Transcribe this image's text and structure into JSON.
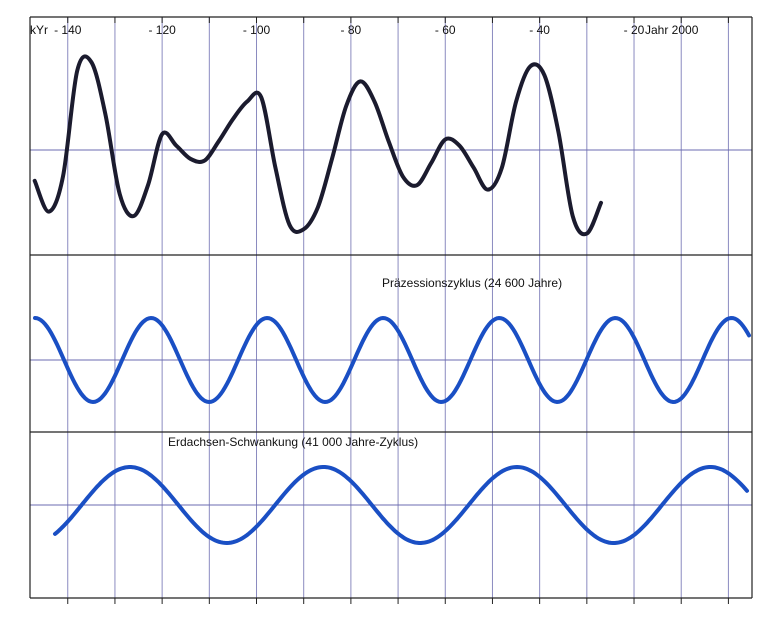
{
  "chart_data": {
    "type": "line",
    "x_unit_label": "kYr",
    "x_axis_end_label": "Jahr 2000",
    "x_ticks": [
      -140,
      -120,
      -100,
      -80,
      -60,
      -40,
      -20
    ],
    "x_tick_labels": [
      "- 140",
      "- 120",
      "- 100",
      "- 80",
      "- 60",
      "- 40",
      "- 20"
    ],
    "xlim": [
      -148,
      5
    ],
    "grid": true,
    "panels": [
      {
        "id": "climate",
        "label": "",
        "color": "#1b1b2e",
        "ylim": [
          -1.2,
          1.2
        ],
        "points": [
          [
            -147,
            -0.35
          ],
          [
            -144,
            -0.7
          ],
          [
            -141,
            -0.3
          ],
          [
            -138,
            0.9
          ],
          [
            -135,
            1.0
          ],
          [
            -132,
            0.4
          ],
          [
            -129,
            -0.5
          ],
          [
            -126,
            -0.75
          ],
          [
            -123,
            -0.4
          ],
          [
            -120,
            0.18
          ],
          [
            -117,
            0.05
          ],
          [
            -114,
            -0.1
          ],
          [
            -111,
            -0.12
          ],
          [
            -108,
            0.1
          ],
          [
            -105,
            0.35
          ],
          [
            -102,
            0.55
          ],
          [
            -99,
            0.6
          ],
          [
            -96,
            -0.2
          ],
          [
            -93,
            -0.85
          ],
          [
            -90,
            -0.9
          ],
          [
            -87,
            -0.65
          ],
          [
            -84,
            -0.1
          ],
          [
            -81,
            0.5
          ],
          [
            -78,
            0.78
          ],
          [
            -75,
            0.55
          ],
          [
            -72,
            0.1
          ],
          [
            -69,
            -0.3
          ],
          [
            -66,
            -0.4
          ],
          [
            -63,
            -0.15
          ],
          [
            -60,
            0.12
          ],
          [
            -57,
            0.05
          ],
          [
            -54,
            -0.2
          ],
          [
            -51,
            -0.45
          ],
          [
            -48,
            -0.2
          ],
          [
            -45,
            0.55
          ],
          [
            -42,
            0.95
          ],
          [
            -39,
            0.85
          ],
          [
            -36,
            0.2
          ],
          [
            -33,
            -0.75
          ],
          [
            -30,
            -0.95
          ],
          [
            -27,
            -0.6
          ]
        ]
      },
      {
        "id": "precession",
        "label": "Präzessionszyklus (24 600 Jahre)",
        "color": "#1a4fc4",
        "ylim": [
          -1.2,
          1.2
        ],
        "period_kyr": 24.6,
        "amplitude": 1
      },
      {
        "id": "obliquity",
        "label": "Erdachsen-Schwankung (41 000 Jahre-Zyklus)",
        "color": "#1a4fc4",
        "ylim": [
          -1.2,
          1.2
        ],
        "period_kyr": 41,
        "amplitude": 1
      }
    ]
  }
}
